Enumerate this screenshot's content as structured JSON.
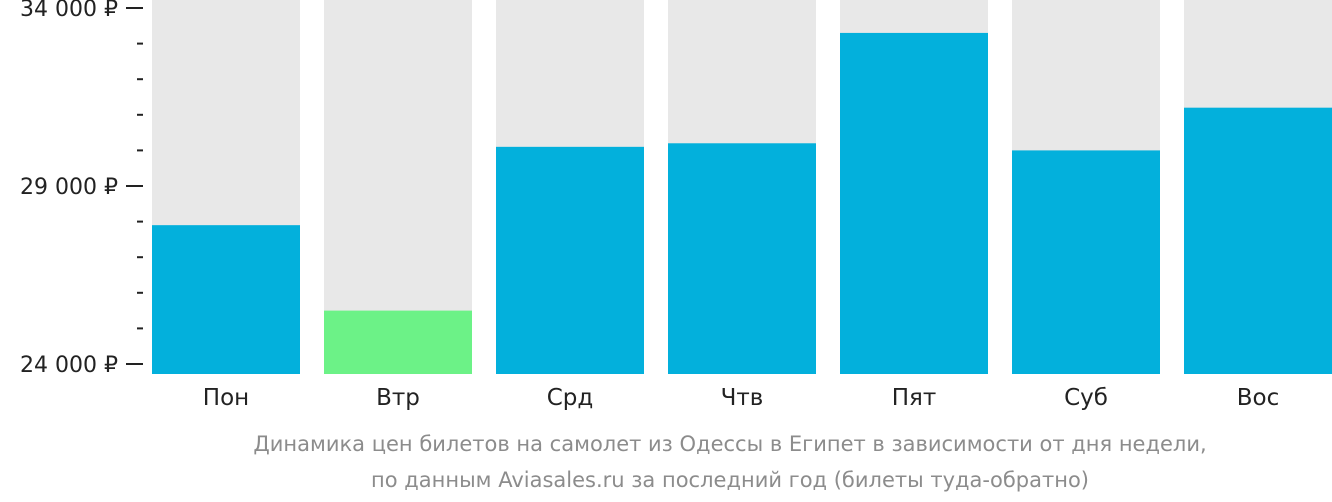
{
  "chart_data": {
    "type": "bar",
    "categories": [
      "Пон",
      "Втр",
      "Срд",
      "Чтв",
      "Пят",
      "Суб",
      "Вос"
    ],
    "values": [
      27900,
      25500,
      30100,
      30200,
      33300,
      30000,
      31200
    ],
    "ylim": [
      24000,
      34000
    ],
    "y_ticks": [
      24000,
      29000,
      34000
    ],
    "y_tick_labels": [
      "24 000 ₽",
      "29 000 ₽",
      "34 000 ₽"
    ],
    "y_minor_ticks": [
      25000,
      26000,
      27000,
      28000,
      30000,
      31000,
      32000,
      33000
    ],
    "highlight_index": 1,
    "grid": false,
    "legend": "none",
    "colors": {
      "bar": "#03b0dc",
      "highlight": "#6cf287",
      "background_bar": "#e8e8e8",
      "axis_text": "#222222",
      "caption_text": "#8c8c8c"
    }
  },
  "caption": {
    "line1": "Динамика цен билетов на самолет из Одессы в Египет в зависимости от дня недели,",
    "line2": "по данным Aviasales.ru за последний год (билеты туда-обратно)"
  }
}
